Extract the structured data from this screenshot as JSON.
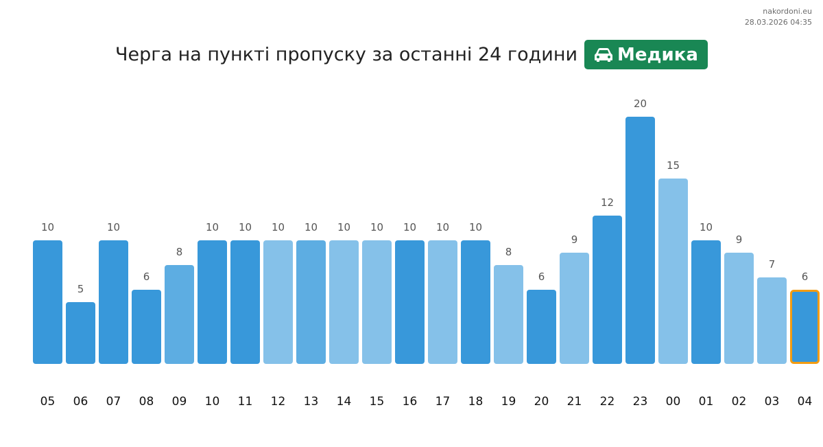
{
  "watermark": {
    "site": "nakordoni.eu",
    "timestamp": "28.03.2026 04:35"
  },
  "header": {
    "title": "Черга на пункті пропуску за останні 24 години",
    "badge_label": "Медика",
    "badge_icon": "car-icon",
    "badge_color": "#198754"
  },
  "chart_data": {
    "type": "bar",
    "title": "Черга на пункті пропуску за останні 24 години",
    "xlabel": "",
    "ylabel": "",
    "categories": [
      "05",
      "06",
      "07",
      "08",
      "09",
      "10",
      "11",
      "12",
      "13",
      "14",
      "15",
      "16",
      "17",
      "18",
      "19",
      "20",
      "21",
      "22",
      "23",
      "00",
      "01",
      "02",
      "03",
      "04"
    ],
    "values": [
      10,
      5,
      10,
      6,
      8,
      10,
      10,
      10,
      10,
      10,
      10,
      10,
      10,
      10,
      8,
      6,
      9,
      12,
      20,
      15,
      10,
      9,
      7,
      6
    ],
    "shades": [
      "dark",
      "dark",
      "dark",
      "dark",
      "mid",
      "dark",
      "dark",
      "light",
      "mid",
      "light",
      "light",
      "dark",
      "light",
      "dark",
      "light",
      "dark",
      "light",
      "dark",
      "dark",
      "light",
      "dark",
      "light",
      "light",
      "dark"
    ],
    "colors": {
      "dark": "#3898da",
      "mid": "#5dade2",
      "light": "#85c1e9",
      "highlight_border": "#f39c12"
    },
    "highlight_last": true,
    "ylim": [
      0,
      20
    ],
    "grid": false,
    "legend": "none"
  }
}
